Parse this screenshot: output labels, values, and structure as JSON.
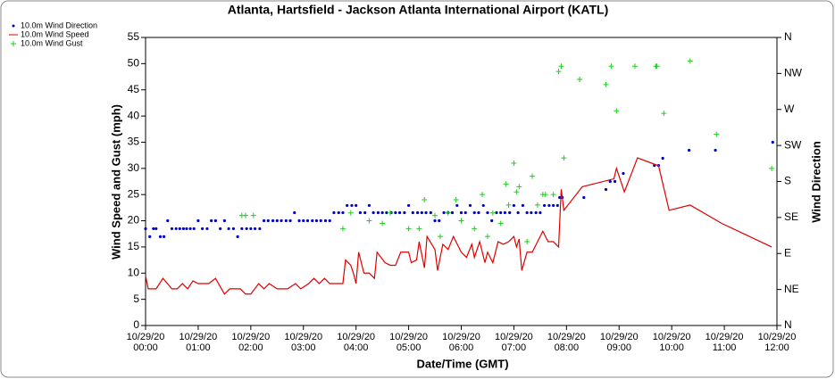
{
  "chart_data": {
    "type": "line",
    "title": "Atlanta, Hartsfield - Jackson Atlanta International Airport (KATL)",
    "xlabel": "Date/Time (GMT)",
    "ylabel": "Wind Speed and Gust (mph)",
    "y2label": "Wind Direction",
    "legend": "top-left",
    "grid": false,
    "xlim": [
      0,
      12
    ],
    "xticks": [
      {
        "value": 0,
        "label": "10/29/20\n00:00"
      },
      {
        "value": 1,
        "label": "10/29/20\n01:00"
      },
      {
        "value": 2,
        "label": "10/29/20\n02:00"
      },
      {
        "value": 3,
        "label": "10/29/20\n03:00"
      },
      {
        "value": 4,
        "label": "10/29/20\n04:00"
      },
      {
        "value": 5,
        "label": "10/29/20\n05:00"
      },
      {
        "value": 6,
        "label": "10/29/20\n06:00"
      },
      {
        "value": 7,
        "label": "10/29/20\n07:00"
      },
      {
        "value": 8,
        "label": "10/29/20\n08:00"
      },
      {
        "value": 9,
        "label": "10/29/20\n09:00"
      },
      {
        "value": 10,
        "label": "10/29/20\n10:00"
      },
      {
        "value": 11,
        "label": "10/29/20\n11:00"
      },
      {
        "value": 12,
        "label": "10/29/20\n12:00"
      }
    ],
    "ylim": [
      0,
      55
    ],
    "yticks": [
      0,
      5,
      10,
      15,
      20,
      25,
      30,
      35,
      40,
      45,
      50,
      55
    ],
    "y2lim": [
      0,
      360
    ],
    "y2ticks": [
      {
        "value": 0,
        "label": "N"
      },
      {
        "value": 45,
        "label": "NE"
      },
      {
        "value": 90,
        "label": "E"
      },
      {
        "value": 135,
        "label": "SE"
      },
      {
        "value": 180,
        "label": "S"
      },
      {
        "value": 225,
        "label": "SW"
      },
      {
        "value": 270,
        "label": "W"
      },
      {
        "value": 315,
        "label": "NW"
      },
      {
        "value": 360,
        "label": "N"
      }
    ],
    "series": [
      {
        "name": "10.0m Wind Direction",
        "color": "#0000cc",
        "marker": "dot",
        "axis": "y2",
        "x": [
          0.0,
          0.08,
          0.15,
          0.2,
          0.28,
          0.35,
          0.42,
          0.5,
          0.58,
          0.65,
          0.72,
          0.78,
          0.85,
          0.92,
          1.0,
          1.08,
          1.17,
          1.25,
          1.33,
          1.42,
          1.5,
          1.58,
          1.67,
          1.75,
          1.83,
          1.92,
          2.0,
          2.08,
          2.17,
          2.25,
          2.33,
          2.42,
          2.5,
          2.58,
          2.67,
          2.75,
          2.83,
          2.92,
          3.0,
          3.08,
          3.17,
          3.25,
          3.33,
          3.42,
          3.5,
          3.58,
          3.67,
          3.75,
          3.83,
          3.92,
          4.0,
          4.08,
          4.17,
          4.25,
          4.33,
          4.42,
          4.5,
          4.58,
          4.67,
          4.75,
          4.83,
          4.92,
          5.0,
          5.08,
          5.17,
          5.25,
          5.33,
          5.42,
          5.5,
          5.58,
          5.67,
          5.75,
          5.83,
          5.92,
          6.0,
          6.08,
          6.17,
          6.25,
          6.33,
          6.42,
          6.5,
          6.58,
          6.67,
          6.75,
          6.83,
          6.92,
          7.0,
          7.08,
          7.17,
          7.25,
          7.33,
          7.42,
          7.5,
          7.58,
          7.67,
          7.75,
          7.83,
          7.87,
          7.92,
          8.33,
          8.75,
          8.83,
          8.92,
          9.08,
          9.67,
          9.75,
          9.83,
          10.33,
          10.83,
          11.92
        ],
        "values": [
          121,
          111,
          121,
          121,
          111,
          111,
          131,
          121,
          121,
          121,
          121,
          121,
          121,
          121,
          131,
          121,
          121,
          131,
          131,
          121,
          131,
          121,
          121,
          111,
          121,
          121,
          121,
          121,
          121,
          131,
          131,
          131,
          131,
          131,
          131,
          131,
          141,
          131,
          131,
          131,
          131,
          131,
          131,
          131,
          131,
          141,
          141,
          141,
          150,
          150,
          150,
          141,
          141,
          150,
          141,
          141,
          141,
          141,
          141,
          141,
          141,
          141,
          150,
          141,
          141,
          141,
          141,
          141,
          131,
          131,
          141,
          141,
          141,
          150,
          141,
          141,
          150,
          141,
          141,
          150,
          141,
          131,
          141,
          141,
          141,
          141,
          150,
          141,
          150,
          141,
          141,
          141,
          141,
          150,
          150,
          150,
          150,
          160,
          160,
          160,
          170,
          180,
          180,
          190,
          200,
          200,
          209,
          219,
          219,
          229
        ]
      },
      {
        "name": "10.0m Wind Speed",
        "color": "#e00000",
        "marker": "line",
        "x": [
          0.0,
          0.05,
          0.2,
          0.33,
          0.5,
          0.6,
          0.7,
          0.8,
          0.9,
          1.0,
          1.2,
          1.33,
          1.5,
          1.6,
          1.8,
          1.9,
          2.0,
          2.15,
          2.25,
          2.35,
          2.5,
          2.7,
          2.85,
          2.95,
          3.1,
          3.2,
          3.3,
          3.4,
          3.5,
          3.75,
          3.8,
          3.9,
          3.95,
          4.0,
          4.05,
          4.15,
          4.25,
          4.35,
          4.4,
          4.55,
          4.65,
          4.75,
          4.85,
          5.0,
          5.05,
          5.15,
          5.2,
          5.3,
          5.35,
          5.5,
          5.55,
          5.65,
          5.75,
          5.85,
          6.0,
          6.1,
          6.2,
          6.25,
          6.35,
          6.45,
          6.5,
          6.6,
          6.7,
          6.8,
          6.9,
          7.0,
          7.05,
          7.1,
          7.15,
          7.25,
          7.35,
          7.45,
          7.55,
          7.65,
          7.75,
          7.85,
          7.9,
          7.95,
          8.3,
          8.9,
          8.95,
          9.1,
          9.35,
          9.75,
          9.95,
          10.35,
          10.95,
          11.9
        ],
        "values": [
          9.5,
          7,
          7,
          9,
          7,
          7,
          8,
          7,
          8.5,
          8,
          8,
          9,
          6,
          7,
          7,
          6,
          6,
          8,
          7,
          8,
          7,
          7,
          8,
          7,
          8,
          9,
          8,
          9,
          8,
          8,
          12.5,
          11.5,
          10,
          8,
          14,
          10,
          10,
          9,
          14,
          12,
          11.5,
          11.5,
          14,
          14,
          12,
          12.5,
          16,
          11,
          17,
          14.5,
          10.5,
          15.5,
          14.5,
          17,
          14,
          13,
          15.5,
          13,
          16,
          12,
          14,
          12,
          16,
          15.5,
          16,
          17,
          15,
          16.5,
          10.5,
          14,
          14,
          16,
          18,
          16,
          16,
          15,
          26,
          22,
          26.5,
          28,
          30,
          25.5,
          32,
          30.5,
          22,
          23,
          19.5,
          15
        ]
      },
      {
        "name": "10.0m Wind Gust",
        "color": "#22cc22",
        "marker": "plus",
        "x": [
          1.83,
          1.9,
          2.05,
          3.75,
          3.9,
          4.25,
          4.5,
          4.65,
          5.0,
          5.2,
          5.3,
          5.5,
          5.6,
          5.75,
          5.9,
          6.0,
          6.25,
          6.4,
          6.5,
          6.6,
          6.75,
          6.85,
          6.9,
          7.0,
          7.05,
          7.1,
          7.25,
          7.35,
          7.45,
          7.55,
          7.6,
          7.75,
          7.85,
          7.9,
          7.95,
          8.25,
          8.75,
          8.85,
          8.95,
          9.3,
          9.7,
          9.72,
          9.85,
          10.35,
          10.85,
          11.9
        ],
        "values": [
          21,
          21,
          21,
          18.5,
          21.5,
          20,
          19.5,
          21.5,
          18.5,
          18.5,
          24,
          21,
          17,
          21.5,
          24,
          20,
          18.5,
          25,
          17,
          21.5,
          19.5,
          27,
          23,
          31,
          25.5,
          26.5,
          16,
          28.5,
          23,
          25,
          25,
          25,
          48.5,
          49.5,
          32,
          47,
          46,
          49.5,
          41,
          49.5,
          49.5,
          49.5,
          40.5,
          50.5,
          36.5,
          30
        ]
      }
    ]
  }
}
